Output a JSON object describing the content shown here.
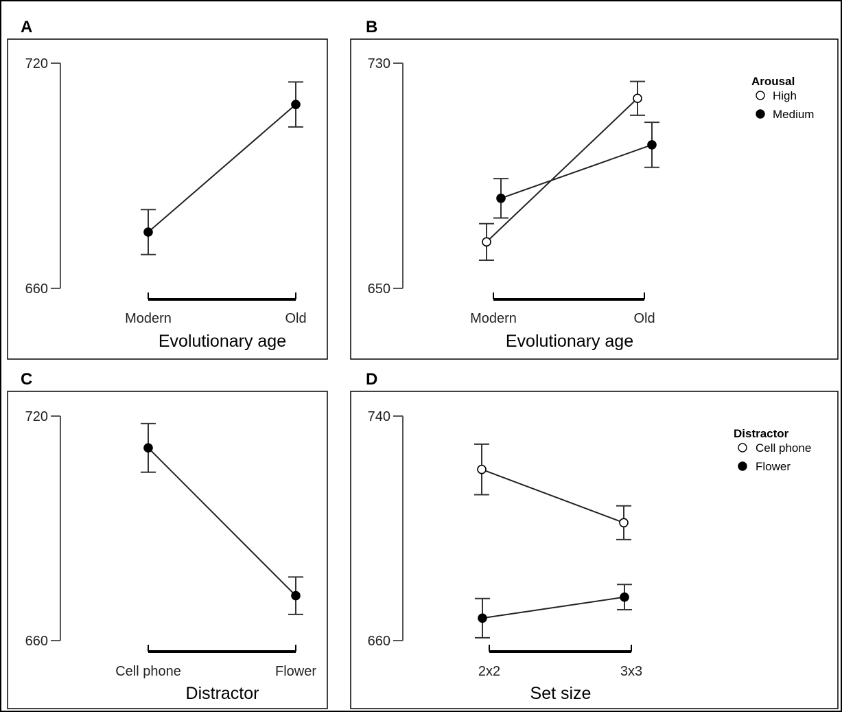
{
  "chart_data": [
    {
      "type": "line",
      "panel": "A",
      "categories": [
        "Modern",
        "Old"
      ],
      "xlabel": "Evolutionary age",
      "ylim": [
        660,
        720
      ],
      "yticks": [
        660,
        720
      ],
      "series": [
        {
          "name": "",
          "filled": true,
          "values": [
            675,
            709
          ],
          "errors": [
            6,
            6
          ]
        }
      ],
      "legend": null
    },
    {
      "type": "line",
      "panel": "B",
      "categories": [
        "Modern",
        "Old"
      ],
      "xlabel": "Evolutionary age",
      "ylim": [
        650,
        730
      ],
      "yticks": [
        650,
        730
      ],
      "series": [
        {
          "name": "High",
          "filled": false,
          "values": [
            666.5,
            717.5
          ],
          "errors": [
            6.5,
            6
          ]
        },
        {
          "name": "Medium",
          "filled": true,
          "values": [
            682,
            701
          ],
          "errors": [
            7,
            8
          ]
        }
      ],
      "legend": {
        "title": "Arousal",
        "position": "top-right"
      }
    },
    {
      "type": "line",
      "panel": "C",
      "categories": [
        "Cell phone",
        "Flower"
      ],
      "xlabel": "Distractor",
      "ylim": [
        660,
        720
      ],
      "yticks": [
        660,
        720
      ],
      "series": [
        {
          "name": "",
          "filled": true,
          "values": [
            711.5,
            672
          ],
          "errors": [
            6.5,
            5
          ]
        }
      ],
      "legend": null
    },
    {
      "type": "line",
      "panel": "D",
      "categories": [
        "2x2",
        "3x3"
      ],
      "xlabel": "Set size",
      "ylim": [
        660,
        740
      ],
      "yticks": [
        660,
        740
      ],
      "series": [
        {
          "name": "Cell phone",
          "filled": false,
          "values": [
            721,
            702
          ],
          "errors": [
            9,
            6
          ]
        },
        {
          "name": "Flower",
          "filled": true,
          "values": [
            668,
            675.5
          ],
          "errors": [
            7,
            4.5
          ]
        }
      ],
      "legend": {
        "title": "Distractor",
        "position": "top-right"
      }
    }
  ]
}
